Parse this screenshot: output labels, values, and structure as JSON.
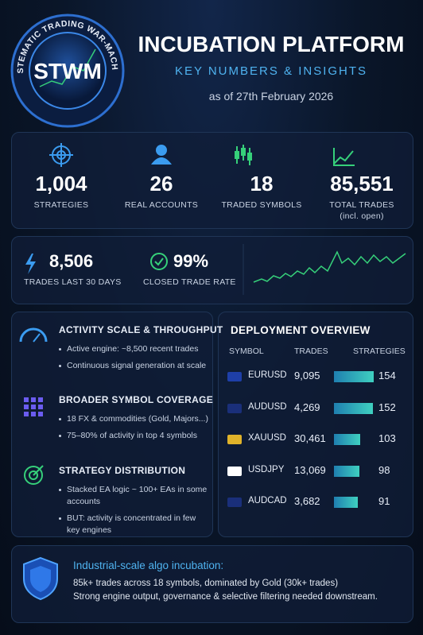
{
  "header": {
    "logo_ring_text": "SYSTEMATIC TRADING WAR-MACHINE",
    "logo": "STWM",
    "title": "INCUBATION PLATFORM",
    "subtitle": "KEY NUMBERS & INSIGHTS",
    "date": "as of 27th February 2026"
  },
  "kpis": [
    {
      "value": "1,004",
      "label": "STRATEGIES"
    },
    {
      "value": "26",
      "label": "REAL ACCOUNTS"
    },
    {
      "value": "18",
      "label": "TRADED SYMBOLS"
    },
    {
      "value": "85,551",
      "label": "TOTAL TRADES",
      "note": "(incl. open)"
    }
  ],
  "stats": [
    {
      "value": "8,506",
      "label": "TRADES LAST 30 DAYS"
    },
    {
      "value": "99%",
      "label": "CLOSED TRADE RATE"
    }
  ],
  "insights": [
    {
      "title": "ACTIVITY SCALE & THROUGHPUT",
      "bullets": [
        "Active engine: ~8,500 recent trades",
        "Continuous signal generation at scale"
      ]
    },
    {
      "title": "BROADER SYMBOL COVERAGE",
      "bullets": [
        "18 FX & commodities (Gold, Majors...)",
        "75–80% of activity in top 4 symbols"
      ]
    },
    {
      "title": "STRATEGY DISTRIBUTION",
      "bullets": [
        "Stacked EA logic  ~ 100+ EAs in some accounts",
        "BUT: activity is concentrated in few key engines"
      ]
    }
  ],
  "deployment": {
    "title": "DEPLOYMENT OVERVIEW",
    "columns": [
      "SYMBOL",
      "TRADES",
      "STRATEGIES"
    ],
    "rows": [
      {
        "symbol": "EURUSD",
        "trades": "9,095",
        "strategies": 154
      },
      {
        "symbol": "AUDUSD",
        "trades": "4,269",
        "strategies": 152
      },
      {
        "symbol": "XAUUSD",
        "trades": "30,461",
        "strategies": 103
      },
      {
        "symbol": "USDJPY",
        "trades": "13,069",
        "strategies": 98
      },
      {
        "symbol": "AUDCAD",
        "trades": "3,682",
        "strategies": 91
      }
    ]
  },
  "footer": {
    "title": "Industrial-scale algo incubation:",
    "lines": [
      "85k+ trades across 18 symbols, dominated by Gold (30k+ trades)",
      "Strong engine output, governance & selective filtering needed downstream."
    ]
  }
}
